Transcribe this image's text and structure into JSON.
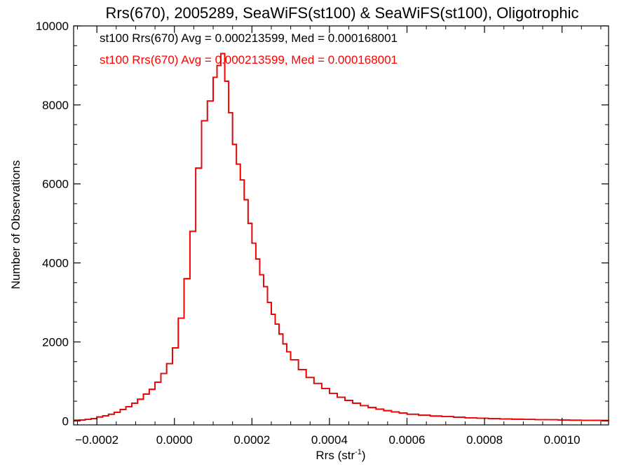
{
  "chart_data": {
    "type": "line",
    "step": true,
    "title": "Rrs(670), 2005289, SeaWiFS(st100) & SeaWiFS(st100), Oligotrophic",
    "xlabel_main": "Rrs (str",
    "xlabel_sup": "-1",
    "xlabel_close": ")",
    "ylabel": "Number of Observations",
    "xlim": [
      -0.00026,
      0.00112
    ],
    "ylim": [
      -100,
      10000
    ],
    "xticks": [
      -0.0002,
      0.0,
      0.0002,
      0.0004,
      0.0006,
      0.0008,
      0.001
    ],
    "xtick_labels": [
      "−0.0002",
      "0.0000",
      "0.0002",
      "0.0004",
      "0.0006",
      "0.0008",
      "0.0010"
    ],
    "yticks": [
      0,
      2000,
      4000,
      6000,
      8000,
      10000
    ],
    "ytick_labels": [
      "0",
      "2000",
      "4000",
      "6000",
      "8000",
      "10000"
    ],
    "grid": false,
    "legend_placement": "top-left",
    "series": [
      {
        "name": "st100 Rrs(670) Avg = 0.000213599, Med = 0.000168001",
        "color": "#000000",
        "x": [
          -0.00026,
          -0.000245,
          -0.00023,
          -0.000215,
          -0.0002,
          -0.000185,
          -0.00017,
          -0.000155,
          -0.00014,
          -0.000125,
          -0.00011,
          -9.5e-05,
          -8e-05,
          -6.5e-05,
          -5e-05,
          -3.5e-05,
          -2e-05,
          -5e-06,
          1e-05,
          2.5e-05,
          4e-05,
          5.5e-05,
          7e-05,
          8.5e-05,
          0.0001,
          0.00011,
          0.00012,
          0.00013,
          0.00014,
          0.00015,
          0.00016,
          0.00017,
          0.00018,
          0.00019,
          0.0002,
          0.00021,
          0.00022,
          0.00023,
          0.00024,
          0.00025,
          0.00026,
          0.00027,
          0.00028,
          0.00029,
          0.0003,
          0.00032,
          0.00034,
          0.00036,
          0.00038,
          0.0004,
          0.00042,
          0.00044,
          0.00046,
          0.00048,
          0.0005,
          0.00052,
          0.00054,
          0.00056,
          0.00058,
          0.0006,
          0.00063,
          0.00066,
          0.00069,
          0.00072,
          0.00075,
          0.00078,
          0.00081,
          0.00084,
          0.00087,
          0.0009,
          0.00093,
          0.00096,
          0.00099,
          0.00102,
          0.00105,
          0.00108,
          0.0011,
          0.00112
        ],
        "y": [
          20,
          25,
          40,
          60,
          100,
          130,
          170,
          220,
          290,
          360,
          450,
          550,
          680,
          800,
          980,
          1200,
          1450,
          1850,
          2600,
          3600,
          4800,
          6400,
          7600,
          8100,
          8700,
          9000,
          9300,
          8600,
          7800,
          7000,
          6500,
          6100,
          5600,
          5000,
          4500,
          4100,
          3700,
          3400,
          3000,
          2700,
          2450,
          2200,
          1950,
          1750,
          1550,
          1300,
          1100,
          950,
          820,
          700,
          600,
          520,
          450,
          390,
          340,
          300,
          260,
          230,
          200,
          170,
          145,
          125,
          110,
          95,
          80,
          70,
          60,
          50,
          45,
          40,
          35,
          30,
          25,
          20,
          18,
          15,
          12,
          10
        ]
      },
      {
        "name": "st100 Rrs(670) Avg = 0.000213599, Med = 0.000168001",
        "color": "#ff0000",
        "x": [
          -0.00026,
          -0.000245,
          -0.00023,
          -0.000215,
          -0.0002,
          -0.000185,
          -0.00017,
          -0.000155,
          -0.00014,
          -0.000125,
          -0.00011,
          -9.5e-05,
          -8e-05,
          -6.5e-05,
          -5e-05,
          -3.5e-05,
          -2e-05,
          -5e-06,
          1e-05,
          2.5e-05,
          4e-05,
          5.5e-05,
          7e-05,
          8.5e-05,
          0.0001,
          0.00011,
          0.00012,
          0.00013,
          0.00014,
          0.00015,
          0.00016,
          0.00017,
          0.00018,
          0.00019,
          0.0002,
          0.00021,
          0.00022,
          0.00023,
          0.00024,
          0.00025,
          0.00026,
          0.00027,
          0.00028,
          0.00029,
          0.0003,
          0.00032,
          0.00034,
          0.00036,
          0.00038,
          0.0004,
          0.00042,
          0.00044,
          0.00046,
          0.00048,
          0.0005,
          0.00052,
          0.00054,
          0.00056,
          0.00058,
          0.0006,
          0.00063,
          0.00066,
          0.00069,
          0.00072,
          0.00075,
          0.00078,
          0.00081,
          0.00084,
          0.00087,
          0.0009,
          0.00093,
          0.00096,
          0.00099,
          0.00102,
          0.00105,
          0.00108,
          0.0011,
          0.00112
        ],
        "y": [
          20,
          25,
          40,
          60,
          100,
          130,
          170,
          220,
          290,
          360,
          450,
          550,
          680,
          800,
          980,
          1200,
          1450,
          1850,
          2600,
          3600,
          4800,
          6400,
          7600,
          8100,
          8700,
          9000,
          9300,
          8600,
          7800,
          7000,
          6500,
          6100,
          5600,
          5000,
          4500,
          4100,
          3700,
          3400,
          3000,
          2700,
          2450,
          2200,
          1950,
          1750,
          1550,
          1300,
          1100,
          950,
          820,
          700,
          600,
          520,
          450,
          390,
          340,
          300,
          260,
          230,
          200,
          170,
          145,
          125,
          110,
          95,
          80,
          70,
          60,
          50,
          45,
          40,
          35,
          30,
          25,
          20,
          18,
          15,
          12,
          10
        ]
      }
    ]
  }
}
